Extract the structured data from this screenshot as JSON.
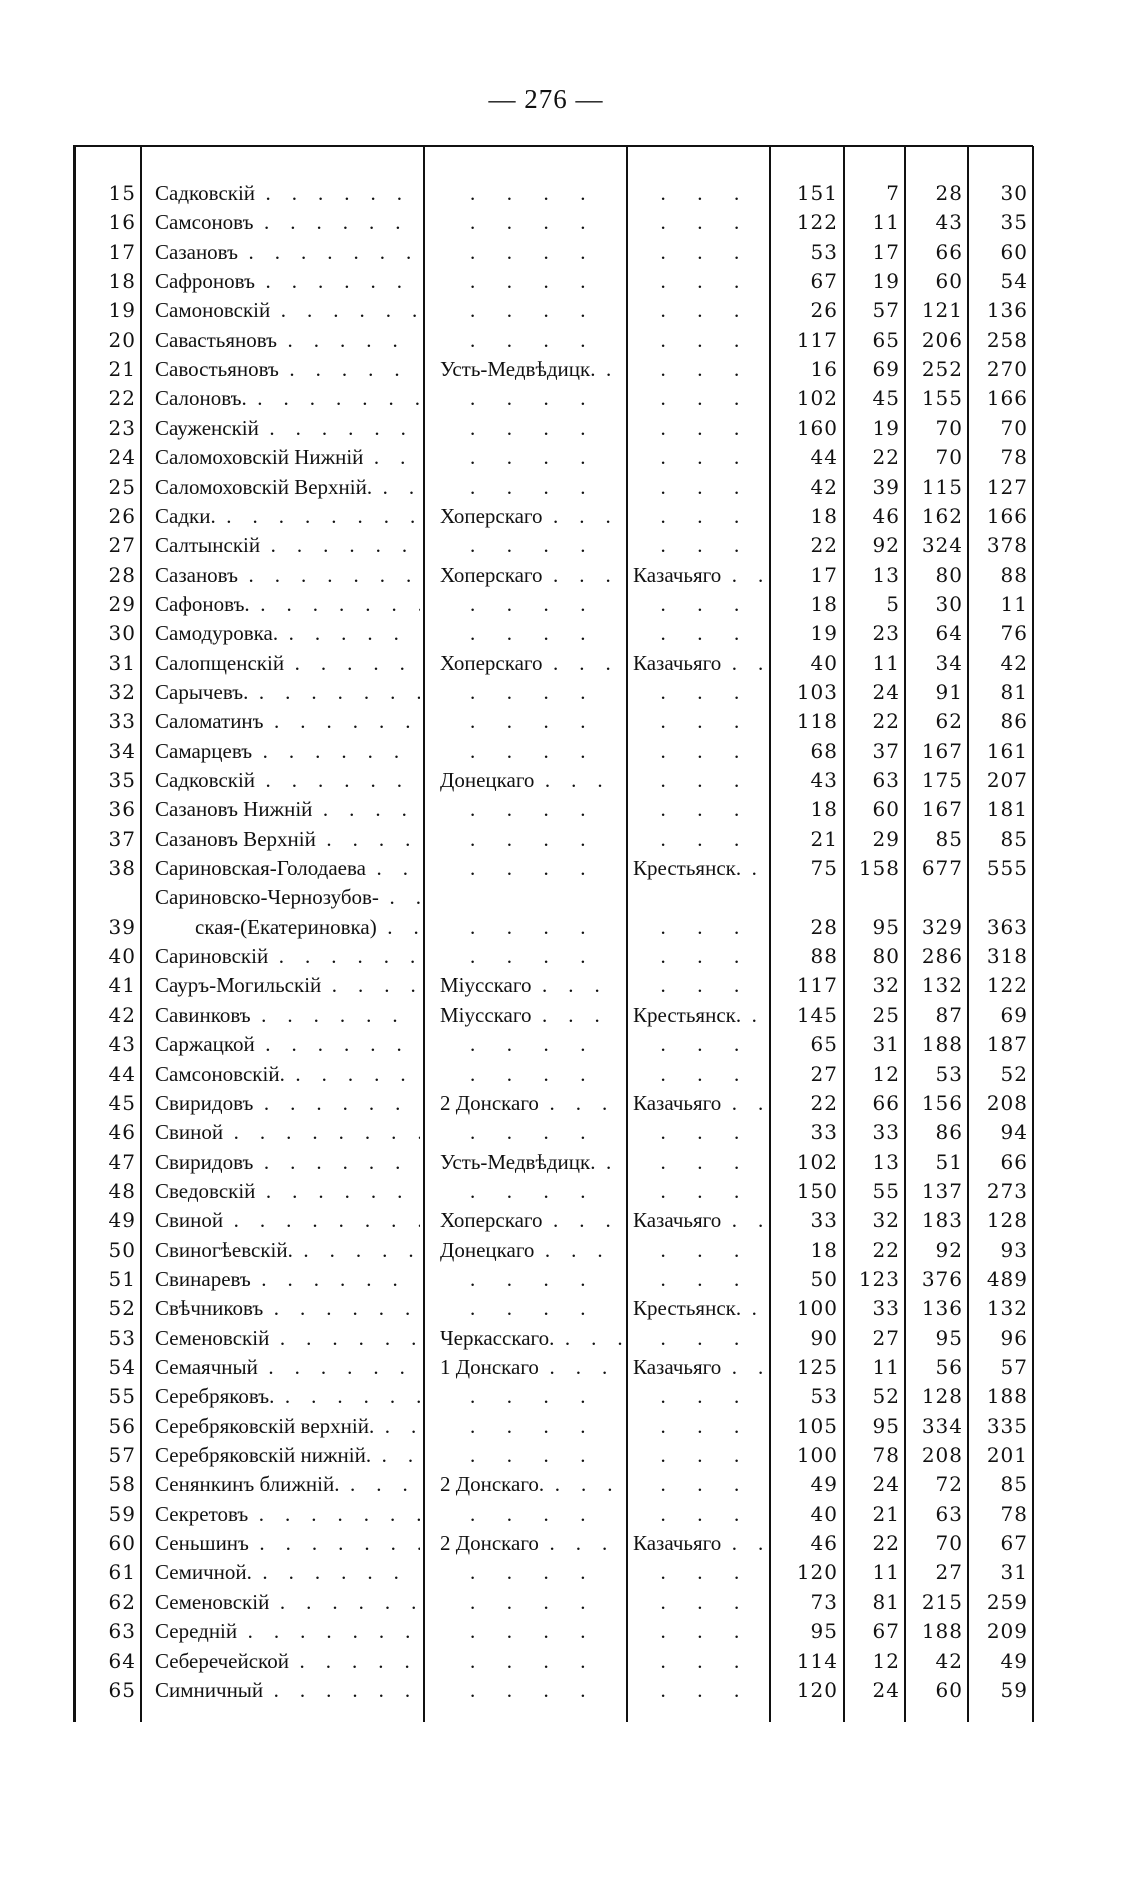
{
  "page_number": "— 276 —",
  "rows": [
    {
      "n": "15",
      "name": "Садковскій",
      "district": "",
      "category": "",
      "c1": "151",
      "c2": "7",
      "c3": "28",
      "c4": "30"
    },
    {
      "n": "16",
      "name": "Самсоновъ",
      "district": "",
      "category": "",
      "c1": "122",
      "c2": "11",
      "c3": "43",
      "c4": "35"
    },
    {
      "n": "17",
      "name": "Сазановъ",
      "district": "",
      "category": "",
      "c1": "53",
      "c2": "17",
      "c3": "66",
      "c4": "60"
    },
    {
      "n": "18",
      "name": "Сафроновъ",
      "district": "",
      "category": "",
      "c1": "67",
      "c2": "19",
      "c3": "60",
      "c4": "54"
    },
    {
      "n": "19",
      "name": "Самоновскій",
      "district": "",
      "category": "",
      "c1": "26",
      "c2": "57",
      "c3": "121",
      "c4": "136"
    },
    {
      "n": "20",
      "name": "Савастьяновъ",
      "district": "",
      "category": "",
      "c1": "117",
      "c2": "65",
      "c3": "206",
      "c4": "258"
    },
    {
      "n": "21",
      "name": "Савостьяновъ",
      "district": "Усть-Медвѣдицк.",
      "category": "",
      "c1": "16",
      "c2": "69",
      "c3": "252",
      "c4": "270"
    },
    {
      "n": "22",
      "name": "Салоновъ.",
      "district": "",
      "category": "",
      "c1": "102",
      "c2": "45",
      "c3": "155",
      "c4": "166"
    },
    {
      "n": "23",
      "name": "Сауженскій",
      "district": "",
      "category": "",
      "c1": "160",
      "c2": "19",
      "c3": "70",
      "c4": "70"
    },
    {
      "n": "24",
      "name": "Саломоховскій Нижній",
      "district": "",
      "category": "",
      "c1": "44",
      "c2": "22",
      "c3": "70",
      "c4": "78"
    },
    {
      "n": "25",
      "name": "Саломоховскій Верхній.",
      "district": "",
      "category": "",
      "c1": "42",
      "c2": "39",
      "c3": "115",
      "c4": "127"
    },
    {
      "n": "26",
      "name": "Садки.",
      "district": "Хоперскаго",
      "category": "",
      "c1": "18",
      "c2": "46",
      "c3": "162",
      "c4": "166"
    },
    {
      "n": "27",
      "name": "Салтынскій",
      "district": "",
      "category": "",
      "c1": "22",
      "c2": "92",
      "c3": "324",
      "c4": "378"
    },
    {
      "n": "28",
      "name": "Сазановъ",
      "district": "Хоперскаго",
      "category": "Казачьяго",
      "c1": "17",
      "c2": "13",
      "c3": "80",
      "c4": "88"
    },
    {
      "n": "29",
      "name": "Сафоновъ.",
      "district": "",
      "category": "",
      "c1": "18",
      "c2": "5",
      "c3": "30",
      "c4": "11"
    },
    {
      "n": "30",
      "name": "Самодуровка.",
      "district": "",
      "category": "",
      "c1": "19",
      "c2": "23",
      "c3": "64",
      "c4": "76"
    },
    {
      "n": "31",
      "name": "Салопщенскій",
      "district": "Хоперскаго",
      "category": "Казачьяго",
      "c1": "40",
      "c2": "11",
      "c3": "34",
      "c4": "42"
    },
    {
      "n": "32",
      "name": "Сарычевъ.",
      "district": "",
      "category": "",
      "c1": "103",
      "c2": "24",
      "c3": "91",
      "c4": "81"
    },
    {
      "n": "33",
      "name": "Саломатинъ",
      "district": "",
      "category": "",
      "c1": "118",
      "c2": "22",
      "c3": "62",
      "c4": "86"
    },
    {
      "n": "34",
      "name": "Самарцевъ",
      "district": "",
      "category": "",
      "c1": "68",
      "c2": "37",
      "c3": "167",
      "c4": "161"
    },
    {
      "n": "35",
      "name": "Садковскій",
      "district": "Донецкаго",
      "category": "",
      "c1": "43",
      "c2": "63",
      "c3": "175",
      "c4": "207"
    },
    {
      "n": "36",
      "name": "Сазановъ Нижній",
      "district": "",
      "category": "",
      "c1": "18",
      "c2": "60",
      "c3": "167",
      "c4": "181"
    },
    {
      "n": "37",
      "name": "Сазановъ Верхній",
      "district": "",
      "category": "",
      "c1": "21",
      "c2": "29",
      "c3": "85",
      "c4": "85"
    },
    {
      "n": "38",
      "name": "Сариновская-Голодаева",
      "district": "",
      "category": "Крестьянск.",
      "c1": "75",
      "c2": "158",
      "c3": "677",
      "c4": "555"
    },
    {
      "n": "39",
      "name": "Сариновско-Чернозубов-",
      "name_cont": "ская-(Екатериновка)",
      "district": "",
      "category": "",
      "c1": "28",
      "c2": "95",
      "c3": "329",
      "c4": "363"
    },
    {
      "n": "40",
      "name": "Сариновскій",
      "district": "",
      "category": "",
      "c1": "88",
      "c2": "80",
      "c3": "286",
      "c4": "318"
    },
    {
      "n": "41",
      "name": "Сауръ-Могильскій",
      "district": "Міусскаго",
      "category": "",
      "c1": "117",
      "c2": "32",
      "c3": "132",
      "c4": "122"
    },
    {
      "n": "42",
      "name": "Савинковъ",
      "district": "Міусскаго",
      "category": "Крестьянск.",
      "c1": "145",
      "c2": "25",
      "c3": "87",
      "c4": "69"
    },
    {
      "n": "43",
      "name": "Саржацкой",
      "district": "",
      "category": "",
      "c1": "65",
      "c2": "31",
      "c3": "188",
      "c4": "187"
    },
    {
      "n": "44",
      "name": "Самсоновскій.",
      "district": "",
      "category": "",
      "c1": "27",
      "c2": "12",
      "c3": "53",
      "c4": "52"
    },
    {
      "n": "45",
      "name": "Свиридовъ",
      "district": "2 Донскаго",
      "category": "Казачьяго",
      "c1": "22",
      "c2": "66",
      "c3": "156",
      "c4": "208"
    },
    {
      "n": "46",
      "name": "Свиной",
      "district": "",
      "category": "",
      "c1": "33",
      "c2": "33",
      "c3": "86",
      "c4": "94"
    },
    {
      "n": "47",
      "name": "Свиридовъ",
      "district": "Усть-Медвѣдицк.",
      "category": "",
      "c1": "102",
      "c2": "13",
      "c3": "51",
      "c4": "66"
    },
    {
      "n": "48",
      "name": "Сведовскій",
      "district": "",
      "category": "",
      "c1": "150",
      "c2": "55",
      "c3": "137",
      "c4": "273"
    },
    {
      "n": "49",
      "name": "Свиной",
      "district": "Хоперскаго",
      "category": "Казачьяго",
      "c1": "33",
      "c2": "32",
      "c3": "183",
      "c4": "128"
    },
    {
      "n": "50",
      "name": "Свиногѣевскій.",
      "district": "Донецкаго",
      "category": "",
      "c1": "18",
      "c2": "22",
      "c3": "92",
      "c4": "93"
    },
    {
      "n": "51",
      "name": "Свинаревъ",
      "district": "",
      "category": "",
      "c1": "50",
      "c2": "123",
      "c3": "376",
      "c4": "489"
    },
    {
      "n": "52",
      "name": "Свѣчниковъ",
      "district": "",
      "category": "Крестьянск.",
      "c1": "100",
      "c2": "33",
      "c3": "136",
      "c4": "132"
    },
    {
      "n": "53",
      "name": "Семеновскій",
      "district": "Черкасскаго.",
      "category": "",
      "c1": "90",
      "c2": "27",
      "c3": "95",
      "c4": "96"
    },
    {
      "n": "54",
      "name": "Семаячный",
      "district": "1 Донскаго",
      "category": "Казачьяго",
      "c1": "125",
      "c2": "11",
      "c3": "56",
      "c4": "57"
    },
    {
      "n": "55",
      "name": "Серебряковъ.",
      "district": "",
      "category": "",
      "c1": "53",
      "c2": "52",
      "c3": "128",
      "c4": "188"
    },
    {
      "n": "56",
      "name": "Серебряковскій верхній.",
      "district": "",
      "category": "",
      "c1": "105",
      "c2": "95",
      "c3": "334",
      "c4": "335"
    },
    {
      "n": "57",
      "name": "Серебряковскій нижній.",
      "district": "",
      "category": "",
      "c1": "100",
      "c2": "78",
      "c3": "208",
      "c4": "201"
    },
    {
      "n": "58",
      "name": "Сенянкинъ ближній.",
      "district": "2 Донскаго.",
      "category": "",
      "c1": "49",
      "c2": "24",
      "c3": "72",
      "c4": "85"
    },
    {
      "n": "59",
      "name": "Секретовъ",
      "district": "",
      "category": "",
      "c1": "40",
      "c2": "21",
      "c3": "63",
      "c4": "78"
    },
    {
      "n": "60",
      "name": "Сеньшинъ",
      "district": "2 Донскаго",
      "category": "Казачьяго",
      "c1": "46",
      "c2": "22",
      "c3": "70",
      "c4": "67"
    },
    {
      "n": "61",
      "name": "Семичной.",
      "district": "",
      "category": "",
      "c1": "120",
      "c2": "11",
      "c3": "27",
      "c4": "31"
    },
    {
      "n": "62",
      "name": "Семеновскій",
      "district": "",
      "category": "",
      "c1": "73",
      "c2": "81",
      "c3": "215",
      "c4": "259"
    },
    {
      "n": "63",
      "name": "Середній",
      "district": "",
      "category": "",
      "c1": "95",
      "c2": "67",
      "c3": "188",
      "c4": "209"
    },
    {
      "n": "64",
      "name": "Себеречейской",
      "district": "",
      "category": "",
      "c1": "114",
      "c2": "12",
      "c3": "42",
      "c4": "49"
    },
    {
      "n": "65",
      "name": "Симничный",
      "district": "",
      "category": "",
      "c1": "120",
      "c2": "24",
      "c3": "60",
      "c4": "59"
    }
  ]
}
